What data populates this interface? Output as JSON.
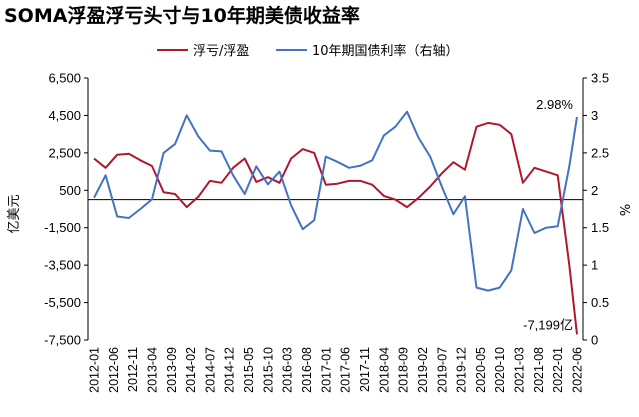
{
  "chart_data": {
    "type": "line",
    "title": "SOMA浮盈浮亏头寸与10年期美债收益率",
    "legend": {
      "placement": "top",
      "entries": [
        {
          "name": "浮亏/浮盈",
          "color": "#B0172F"
        },
        {
          "name": "10年期国债利率（右轴）",
          "color": "#4472C4"
        }
      ]
    },
    "ylabel_left": "亿美元",
    "ylabel_right": "%",
    "ylim_left": [
      -7500,
      6500
    ],
    "ylim_right": [
      0,
      3.5
    ],
    "yticks_left": [
      "6,500",
      "4,500",
      "2,500",
      "500",
      "-1,500",
      "-3,500",
      "-5,500",
      "-7,500"
    ],
    "yticks_right": [
      "3.5",
      "3",
      "2.5",
      "2",
      "1.5",
      "1",
      "0.5",
      "0"
    ],
    "xtick_labels": [
      "2012-01",
      "2012-06",
      "2012-11",
      "2013-04",
      "2013-09",
      "2014-02",
      "2014-07",
      "2014-12",
      "2015-05",
      "2015-10",
      "2016-03",
      "2016-08",
      "2017-01",
      "2017-06",
      "2017-11",
      "2018-04",
      "2018-09",
      "2019-02",
      "2019-07",
      "2019-12",
      "2020-05",
      "2020-10",
      "2021-03",
      "2021-08",
      "2022-01",
      "2022-06"
    ],
    "x": [
      "2012-01",
      "2012-04",
      "2012-07",
      "2012-10",
      "2013-01",
      "2013-04",
      "2013-07",
      "2013-10",
      "2014-01",
      "2014-04",
      "2014-07",
      "2014-10",
      "2015-01",
      "2015-04",
      "2015-07",
      "2015-10",
      "2016-01",
      "2016-04",
      "2016-07",
      "2016-10",
      "2017-01",
      "2017-04",
      "2017-07",
      "2017-10",
      "2018-01",
      "2018-04",
      "2018-07",
      "2018-10",
      "2019-01",
      "2019-04",
      "2019-07",
      "2019-10",
      "2020-01",
      "2020-04",
      "2020-07",
      "2020-10",
      "2021-01",
      "2021-04",
      "2021-07",
      "2021-10",
      "2022-01",
      "2022-04",
      "2022-06"
    ],
    "series": [
      {
        "name": "浮亏/浮盈",
        "axis": "left",
        "color": "#B0172F",
        "values": [
          2200,
          1700,
          2400,
          2450,
          2100,
          1800,
          400,
          300,
          -400,
          150,
          1000,
          900,
          1700,
          2200,
          950,
          1200,
          900,
          2200,
          2700,
          2500,
          800,
          850,
          1000,
          1000,
          800,
          200,
          0,
          -400,
          100,
          700,
          1400,
          2000,
          1600,
          3900,
          4100,
          4000,
          3500,
          900,
          1700,
          1500,
          1300,
          -3500,
          -7199
        ]
      },
      {
        "name": "10年期国债利率（右轴）",
        "axis": "right",
        "color": "#4472C4",
        "values": [
          1.9,
          2.2,
          1.65,
          1.63,
          1.75,
          1.88,
          2.5,
          2.62,
          3.0,
          2.72,
          2.53,
          2.52,
          2.2,
          1.95,
          2.32,
          2.08,
          2.25,
          1.8,
          1.48,
          1.6,
          2.45,
          2.38,
          2.3,
          2.33,
          2.4,
          2.73,
          2.85,
          3.05,
          2.7,
          2.45,
          2.05,
          1.68,
          1.92,
          0.7,
          0.66,
          0.7,
          0.93,
          1.75,
          1.43,
          1.5,
          1.52,
          2.32,
          2.98
        ]
      }
    ],
    "annotations": [
      {
        "text": "2.98%",
        "series": 1,
        "index": 42
      },
      {
        "text": "-7,199亿",
        "series": 0,
        "index": 42
      }
    ],
    "zero_line": true,
    "grid": false
  }
}
